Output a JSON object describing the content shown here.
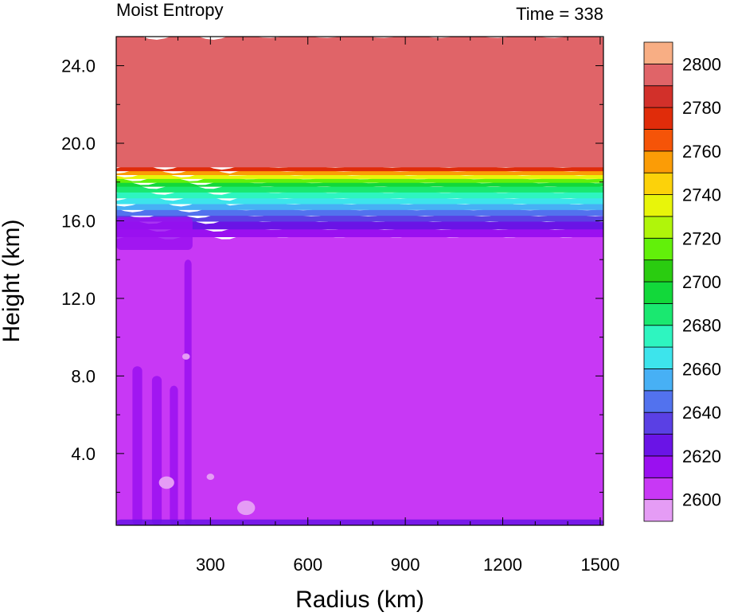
{
  "chart_data": {
    "type": "heatmap",
    "title_left": "Moist Entropy",
    "title_right": "Time = 338",
    "xlabel": "Radius (km)",
    "ylabel": "Height (km)",
    "xlim": [
      10,
      1510
    ],
    "ylim": [
      0.3,
      25.5
    ],
    "x_ticks": [
      300,
      600,
      900,
      1200,
      1500
    ],
    "x_tick_labels": [
      "300",
      "600",
      "900",
      "1200",
      "1500"
    ],
    "y_ticks": [
      4,
      8,
      12,
      16,
      20,
      24
    ],
    "y_tick_labels": [
      "4.0",
      "8.0",
      "12.0",
      "16.0",
      "20.0",
      "24.0"
    ],
    "colorbar": {
      "labels": [
        "2600",
        "2620",
        "2640",
        "2660",
        "2680",
        "2700",
        "2720",
        "2740",
        "2760",
        "2780",
        "2800"
      ],
      "colors": [
        "#e59cf5",
        "#c838f5",
        "#9a10f0",
        "#6a14e6",
        "#5a40e4",
        "#5272ee",
        "#47b0f5",
        "#3de4ec",
        "#2ef5c0",
        "#1ae870",
        "#12d83a",
        "#2acc10",
        "#62f00a",
        "#b0f50a",
        "#e8f50a",
        "#fcd20a",
        "#fb9c06",
        "#f55408",
        "#e02c0a",
        "#d2302a",
        "#e06468",
        "#f8ae84"
      ]
    },
    "profile": {
      "heights": [
        0.3,
        1.0,
        14.8,
        15.2,
        15.6,
        16.0,
        16.3,
        16.6,
        16.9,
        17.2,
        17.5,
        17.8,
        18.0,
        18.2,
        18.4,
        18.6,
        18.8,
        25.5
      ],
      "levels": [
        1,
        1,
        1,
        2,
        3,
        4,
        5,
        6,
        7,
        8,
        9,
        10,
        12,
        14,
        16,
        18,
        20,
        21
      ]
    }
  }
}
